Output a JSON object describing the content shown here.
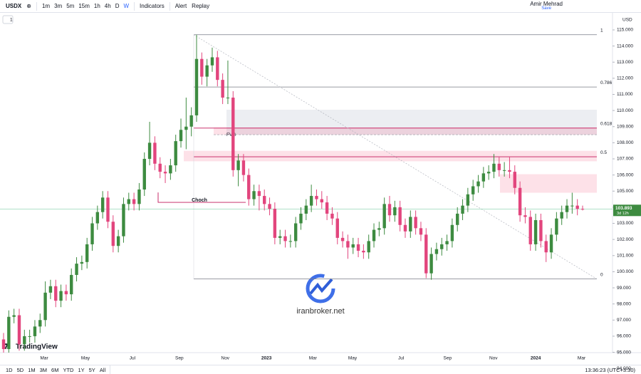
{
  "toolbar": {
    "symbol": "USDX",
    "intervals": [
      "1m",
      "3m",
      "5m",
      "15m",
      "1h",
      "4h",
      "D",
      "W"
    ],
    "active_interval": 7,
    "indicators": "Indicators",
    "alert": "Alert",
    "replay": "Replay",
    "user": "Amir Mehrad",
    "save": "Save",
    "pane_count": "1"
  },
  "bottom_bar": {
    "ranges": [
      "1D",
      "5D",
      "1M",
      "3M",
      "6M",
      "YTD",
      "1Y",
      "5Y",
      "All"
    ],
    "clock": "13:36:23 (UTC+3:30)"
  },
  "watermark": {
    "site": "iranbroker.net",
    "brand": "TradingView"
  },
  "chart_data": {
    "type": "candlestick",
    "currency": "USD",
    "up_color": "#3d8b40",
    "down_color": "#e2457d",
    "countdown": "3d 12h",
    "candles": [
      [
        95.8,
        96.2,
        94.8,
        95.2
      ],
      [
        95.2,
        97.6,
        94.8,
        97.2
      ],
      [
        97.2,
        97.7,
        96.8,
        97.3
      ],
      [
        97.3,
        97.7,
        95.1,
        95.5
      ],
      [
        95.5,
        96.4,
        95.1,
        96.0
      ],
      [
        96.0,
        96.4,
        95.6,
        96.0
      ],
      [
        96.0,
        97.0,
        95.6,
        96.6
      ],
      [
        96.6,
        97.4,
        96.2,
        97.0
      ],
      [
        97.0,
        99.4,
        96.6,
        98.7
      ],
      [
        98.7,
        99.5,
        98.3,
        99.1
      ],
      [
        99.1,
        99.5,
        97.8,
        98.2
      ],
      [
        98.2,
        99.2,
        97.8,
        98.8
      ],
      [
        98.8,
        99.2,
        98.2,
        98.6
      ],
      [
        98.6,
        100.2,
        98.2,
        99.8
      ],
      [
        99.8,
        100.9,
        99.4,
        100.5
      ],
      [
        100.5,
        101.0,
        100.1,
        100.6
      ],
      [
        100.6,
        102.1,
        100.2,
        101.7
      ],
      [
        101.7,
        103.4,
        101.3,
        103.0
      ],
      [
        103.0,
        104.1,
        102.6,
        103.7
      ],
      [
        103.7,
        105.0,
        103.3,
        104.6
      ],
      [
        104.6,
        105.0,
        102.7,
        103.1
      ],
      [
        103.1,
        103.5,
        101.2,
        101.6
      ],
      [
        101.6,
        102.6,
        101.2,
        102.2
      ],
      [
        102.2,
        104.6,
        101.8,
        104.2
      ],
      [
        104.2,
        104.9,
        103.8,
        104.5
      ],
      [
        104.5,
        104.9,
        103.8,
        104.2
      ],
      [
        104.2,
        105.5,
        103.8,
        105.1
      ],
      [
        105.1,
        107.4,
        104.7,
        107.0
      ],
      [
        107.0,
        109.3,
        106.6,
        108.0
      ],
      [
        108.0,
        108.4,
        106.3,
        106.7
      ],
      [
        106.7,
        107.1,
        105.8,
        106.2
      ],
      [
        106.2,
        106.6,
        105.5,
        106.1
      ],
      [
        106.1,
        107.0,
        105.7,
        106.6
      ],
      [
        106.6,
        108.5,
        106.2,
        108.1
      ],
      [
        108.1,
        109.5,
        107.7,
        108.8
      ],
      [
        108.8,
        110.8,
        107.6,
        109.0
      ],
      [
        109.0,
        110.2,
        108.4,
        109.7
      ],
      [
        109.7,
        114.7,
        109.3,
        113.2
      ],
      [
        113.2,
        113.6,
        111.6,
        112.1
      ],
      [
        112.1,
        113.2,
        111.5,
        112.8
      ],
      [
        112.8,
        113.9,
        112.4,
        113.3
      ],
      [
        113.3,
        113.7,
        111.5,
        111.9
      ],
      [
        111.9,
        112.3,
        110.4,
        110.8
      ],
      [
        110.8,
        113.1,
        110.4,
        110.8
      ],
      [
        110.8,
        111.2,
        105.9,
        106.3
      ],
      [
        106.3,
        107.3,
        105.3,
        106.9
      ],
      [
        106.9,
        107.3,
        105.6,
        106.0
      ],
      [
        106.0,
        106.4,
        104.1,
        104.5
      ],
      [
        104.5,
        105.4,
        104.1,
        105.0
      ],
      [
        105.0,
        105.4,
        103.8,
        104.7
      ],
      [
        104.7,
        105.1,
        103.8,
        104.2
      ],
      [
        104.2,
        104.6,
        103.5,
        103.9
      ],
      [
        103.9,
        104.3,
        101.7,
        102.1
      ],
      [
        102.1,
        102.6,
        101.7,
        102.2
      ],
      [
        102.2,
        102.6,
        101.5,
        101.9
      ],
      [
        101.9,
        102.3,
        101.5,
        101.9
      ],
      [
        101.9,
        103.4,
        101.5,
        103.0
      ],
      [
        103.0,
        104.0,
        102.6,
        103.6
      ],
      [
        103.6,
        104.5,
        103.2,
        104.1
      ],
      [
        104.1,
        105.4,
        103.7,
        104.7
      ],
      [
        104.7,
        105.1,
        104.1,
        104.5
      ],
      [
        104.5,
        105.0,
        103.9,
        104.3
      ],
      [
        104.3,
        104.7,
        103.2,
        103.6
      ],
      [
        103.6,
        104.0,
        102.9,
        103.3
      ],
      [
        103.3,
        103.7,
        101.7,
        102.1
      ],
      [
        102.1,
        102.5,
        101.5,
        101.9
      ],
      [
        101.9,
        102.3,
        100.8,
        101.5
      ],
      [
        101.5,
        102.1,
        101.1,
        101.7
      ],
      [
        101.7,
        102.1,
        100.9,
        101.3
      ],
      [
        101.3,
        101.7,
        100.8,
        101.2
      ],
      [
        101.2,
        102.3,
        100.8,
        101.9
      ],
      [
        101.9,
        103.0,
        101.5,
        102.6
      ],
      [
        102.6,
        103.1,
        102.2,
        102.7
      ],
      [
        102.7,
        104.6,
        102.3,
        104.2
      ],
      [
        104.2,
        104.7,
        103.1,
        103.5
      ],
      [
        103.5,
        104.4,
        103.1,
        104.0
      ],
      [
        104.0,
        104.4,
        102.5,
        102.9
      ],
      [
        102.9,
        103.3,
        102.1,
        102.5
      ],
      [
        102.5,
        103.8,
        102.1,
        103.4
      ],
      [
        103.4,
        103.8,
        102.3,
        102.7
      ],
      [
        102.7,
        103.1,
        101.9,
        102.3
      ],
      [
        102.3,
        102.7,
        99.6,
        99.9
      ],
      [
        99.9,
        101.5,
        99.5,
        101.1
      ],
      [
        101.1,
        101.8,
        100.7,
        101.4
      ],
      [
        101.4,
        102.1,
        101.0,
        101.7
      ],
      [
        101.7,
        102.3,
        101.3,
        101.9
      ],
      [
        101.9,
        103.3,
        101.5,
        102.9
      ],
      [
        102.9,
        104.0,
        102.5,
        103.6
      ],
      [
        103.6,
        104.5,
        103.2,
        104.1
      ],
      [
        104.1,
        105.2,
        103.7,
        104.8
      ],
      [
        104.8,
        105.7,
        104.4,
        105.3
      ],
      [
        105.3,
        106.0,
        104.9,
        105.6
      ],
      [
        105.6,
        106.5,
        105.2,
        106.1
      ],
      [
        106.1,
        106.6,
        105.7,
        106.2
      ],
      [
        106.2,
        107.3,
        105.8,
        106.7
      ],
      [
        106.7,
        107.1,
        105.9,
        106.3
      ],
      [
        106.3,
        106.8,
        105.9,
        106.3
      ],
      [
        106.3,
        107.1,
        105.8,
        106.2
      ],
      [
        106.2,
        106.6,
        104.8,
        105.2
      ],
      [
        105.2,
        105.6,
        103.1,
        103.5
      ],
      [
        103.5,
        104.0,
        103.0,
        103.4
      ],
      [
        103.4,
        103.8,
        101.3,
        101.7
      ],
      [
        101.7,
        103.6,
        101.3,
        103.2
      ],
      [
        103.2,
        103.6,
        101.5,
        101.9
      ],
      [
        101.9,
        102.3,
        100.6,
        101.2
      ],
      [
        101.2,
        102.7,
        100.8,
        102.3
      ],
      [
        102.3,
        103.7,
        101.9,
        103.3
      ],
      [
        103.3,
        104.1,
        102.9,
        103.7
      ],
      [
        103.7,
        104.5,
        103.3,
        104.1
      ],
      [
        104.1,
        104.9,
        103.6,
        104.1
      ],
      [
        104.1,
        104.5,
        103.5,
        103.9
      ],
      [
        103.9,
        104.1,
        103.8,
        103.893
      ]
    ],
    "ylim": [
      94.98,
      116.06
    ],
    "yticks": [
      {
        "value": 94,
        "label": "94.000"
      },
      {
        "value": 95,
        "label": "95.000"
      },
      {
        "value": 96,
        "label": "96.000"
      },
      {
        "value": 97,
        "label": "97.000"
      },
      {
        "value": 98,
        "label": "98.000"
      },
      {
        "value": 99,
        "label": "99.000"
      },
      {
        "value": 100,
        "label": "100.000"
      },
      {
        "value": 101,
        "label": "101.000"
      },
      {
        "value": 102,
        "label": "102.000"
      },
      {
        "value": 103,
        "label": "103.000"
      },
      {
        "value": 104,
        "label": "104.000"
      },
      {
        "value": 105,
        "label": "105.000"
      },
      {
        "value": 106,
        "label": "106.000"
      },
      {
        "value": 107,
        "label": "107.000"
      },
      {
        "value": 108,
        "label": "108.000"
      },
      {
        "value": 109,
        "label": "109.000"
      },
      {
        "value": 110,
        "label": "110.000"
      },
      {
        "value": 111,
        "label": "111.000"
      },
      {
        "value": 112,
        "label": "112.000"
      },
      {
        "value": 113,
        "label": "113.000"
      },
      {
        "value": 114,
        "label": "114.000"
      },
      {
        "value": 115,
        "label": "115.000"
      }
    ],
    "xticks": [
      {
        "value": 7.8,
        "label": "Mar"
      },
      {
        "value": 15.7,
        "label": "May"
      },
      {
        "value": 24.7,
        "label": "Jul"
      },
      {
        "value": 33.7,
        "label": "Sep"
      },
      {
        "value": 42.5,
        "label": "Nov"
      },
      {
        "value": 50.4,
        "label": "2023"
      },
      {
        "value": 59.3,
        "label": "Mar"
      },
      {
        "value": 66.9,
        "label": "May"
      },
      {
        "value": 76.2,
        "label": "Jul"
      },
      {
        "value": 85.1,
        "label": "Sep"
      },
      {
        "value": 93.9,
        "label": "Nov"
      },
      {
        "value": 102,
        "label": "2024"
      },
      {
        "value": 110.8,
        "label": "Mar"
      }
    ],
    "fib_levels": [
      {
        "level": 1,
        "price": 114.7
      },
      {
        "level": 0.786,
        "price": 111.46
      },
      {
        "level": 0.618,
        "price": 108.91
      },
      {
        "level": 0.5,
        "price": 107.13
      },
      {
        "level": 0,
        "price": 99.55
      }
    ],
    "zones": [
      {
        "top": 110.05,
        "bottom": 108.5
      },
      {
        "top": 107.5,
        "bottom": 106.85
      },
      {
        "top": 106.05,
        "bottom": 104.9
      }
    ],
    "fvg": {
      "label": "FVG",
      "top": 108.95,
      "bottom": 108.5
    },
    "choch": {
      "label": "Choch",
      "price": 104.3
    }
  }
}
